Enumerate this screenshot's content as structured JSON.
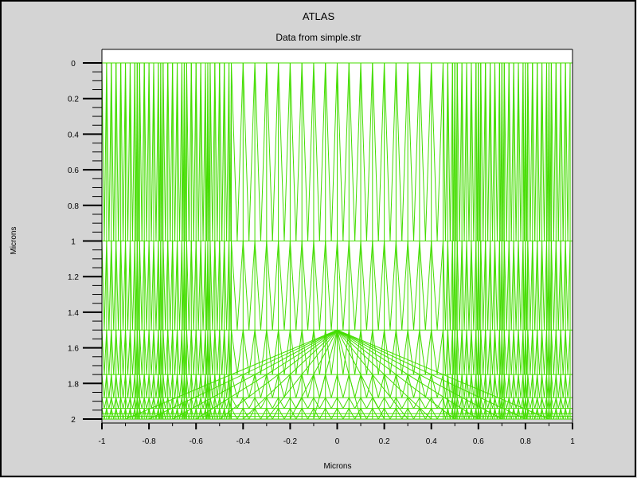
{
  "window": {
    "background": "#d4d4d4",
    "border_color": "#000000"
  },
  "chart_data": {
    "type": "mesh",
    "title": "ATLAS",
    "subtitle": "Data from simple.str",
    "xlabel": "Microns",
    "ylabel": "Microns",
    "xlim": [
      -1,
      1
    ],
    "ylim": [
      2,
      0
    ],
    "y_inverted": true,
    "grid": false,
    "mesh_color": "#44dd00",
    "x_ticks": [
      -1,
      -0.8,
      -0.6,
      -0.4,
      -0.2,
      0,
      0.2,
      0.4,
      0.6,
      0.8,
      1
    ],
    "x_tick_labels": [
      "-1",
      "-0.8",
      "-0.6",
      "-0.4",
      "-0.2",
      "0",
      "0.2",
      "0.4",
      "0.6",
      "0.8",
      "1"
    ],
    "y_ticks": [
      0,
      0.2,
      0.4,
      0.6,
      0.8,
      1,
      1.2,
      1.4,
      1.6,
      1.8,
      2
    ],
    "y_tick_labels": [
      "0",
      "0.2",
      "0.4",
      "0.6",
      "0.8",
      "1",
      "1.2",
      "1.4",
      "1.6",
      "1.8",
      "2"
    ],
    "mesh_horizontal_lines": [
      0,
      1,
      1.5,
      1.75,
      1.88,
      1.94,
      1.97,
      1.985,
      2
    ],
    "partial_lines": [
      {
        "y": 1,
        "x_from": -1,
        "x_to": -0.52
      },
      {
        "y": 1,
        "x_from": 0.52,
        "x_to": 1
      }
    ],
    "mesh_columns_center": [
      -0.9,
      -0.8,
      -0.7,
      -0.6,
      -0.5,
      -0.4,
      -0.3,
      -0.2,
      -0.1,
      0,
      0.1,
      0.2,
      0.3,
      0.4,
      0.5,
      0.6,
      0.7,
      0.8,
      0.9
    ],
    "mesh_edge_spacing": 0.02
  }
}
